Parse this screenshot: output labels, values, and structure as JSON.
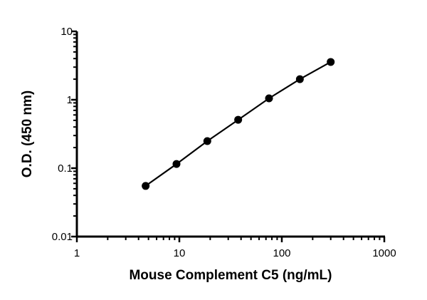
{
  "chart_data": {
    "type": "line",
    "title": "",
    "xlabel": "Mouse Complement C5 (ng/mL)",
    "ylabel": "O.D. (450 nm)",
    "x_scale": "log",
    "y_scale": "log",
    "xlim": [
      1,
      1000
    ],
    "ylim": [
      0.01,
      10
    ],
    "x_ticks": [
      "1",
      "10",
      "100",
      "1000"
    ],
    "y_ticks": [
      "0.01",
      "0.1",
      "1",
      "10"
    ],
    "grid": false,
    "legend": "none",
    "series": [
      {
        "x": [
          4.69,
          9.38,
          18.75,
          37.5,
          75,
          150,
          300
        ],
        "y": [
          0.055,
          0.115,
          0.249,
          0.51,
          1.05,
          2.0,
          3.57
        ],
        "color": "#000000",
        "marker": "circle"
      }
    ]
  }
}
